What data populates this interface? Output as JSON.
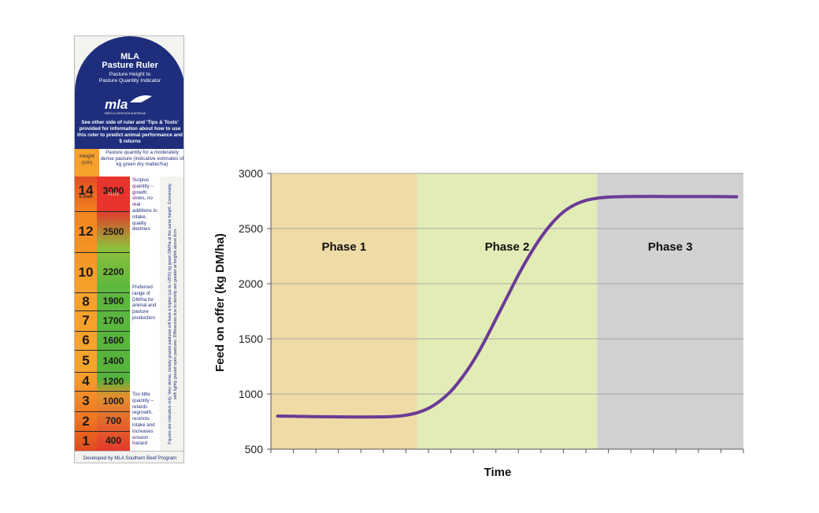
{
  "ruler": {
    "title_line1": "MLA",
    "title_line2": "Pasture Ruler",
    "subtitle_line1": "Pasture Height to",
    "subtitle_line2": "Pasture Quantity Indicator",
    "logo_text": "mla",
    "logo_subtext": "MEAT & LIVESTOCK AUSTRALIA",
    "info": "See other side of ruler and 'Tips & Tools' provided for information about how to use this ruler to predict animal performance and $ returns",
    "height_header": "Height (cm)",
    "quantity_header": "Pasture quantity for a moderately dense pasture (indicative estimates of kg green dry matter/ha)",
    "rows": [
      {
        "height": "14",
        "height_note": "& OVER",
        "quantity": "3000",
        "quantity_note": "PLUS"
      },
      {
        "height": "12",
        "quantity": "2500"
      },
      {
        "height": "10",
        "quantity": "2200"
      },
      {
        "height": "8",
        "quantity": "1900"
      },
      {
        "height": "7",
        "quantity": "1700"
      },
      {
        "height": "6",
        "quantity": "1600"
      },
      {
        "height": "5",
        "quantity": "1400"
      },
      {
        "height": "4",
        "quantity": "1200"
      },
      {
        "height": "3",
        "quantity": "1000"
      },
      {
        "height": "2",
        "quantity": "700"
      },
      {
        "height": "1",
        "quantity": "400"
      }
    ],
    "desc_surplus": "Surplus quantity – growth slows, no real additions to intake, quality declines",
    "desc_preferred": "Preferred range of DM/ha for animal and pasture production",
    "desc_little": "Too little quantity – retards regrowth, restricts intake and increases erosion hazard",
    "vertical_note": "Figures are indicative only. Very dense, closely grazed pastures will have a higher (up to +25%) kg green DM/ha at the same height. Conversely, with lightly grazed open pastures. Differences due to density are greater at heights above 6cm.",
    "footer": "Developed by MLA Southern Beef Program"
  },
  "chart_data": {
    "type": "line",
    "xlabel": "Time",
    "ylabel": "Feed on offer (kg DM/ha)",
    "ylim": [
      500,
      3000
    ],
    "yticks": [
      500,
      1000,
      1500,
      2000,
      2500,
      3000
    ],
    "xlim": [
      0,
      21
    ],
    "x_minor_ticks": 21,
    "grid": true,
    "phases": [
      {
        "name": "Phase 1",
        "x_start": 0,
        "x_end": 6.5,
        "color": "#efdba6"
      },
      {
        "name": "Phase 2",
        "x_start": 6.5,
        "x_end": 14.5,
        "color": "#e2ecb6"
      },
      {
        "name": "Phase 3",
        "x_start": 14.5,
        "x_end": 21,
        "color": "#d1d1d3"
      }
    ],
    "series": [
      {
        "color": "#6b3a95",
        "x": [
          0.3,
          1,
          2,
          3,
          4,
          5,
          5.5,
          6,
          6.5,
          7,
          7.5,
          8,
          8.5,
          9,
          9.5,
          10,
          10.5,
          11,
          11.5,
          12,
          12.5,
          13,
          13.5,
          14,
          14.5,
          15,
          16,
          17,
          18,
          19,
          20,
          20.7
        ],
        "y": [
          800,
          798,
          795,
          793,
          792,
          793,
          797,
          808,
          830,
          870,
          935,
          1025,
          1150,
          1300,
          1480,
          1680,
          1880,
          2080,
          2260,
          2420,
          2550,
          2650,
          2715,
          2755,
          2775,
          2785,
          2790,
          2791,
          2790,
          2790,
          2789,
          2788
        ]
      }
    ]
  }
}
